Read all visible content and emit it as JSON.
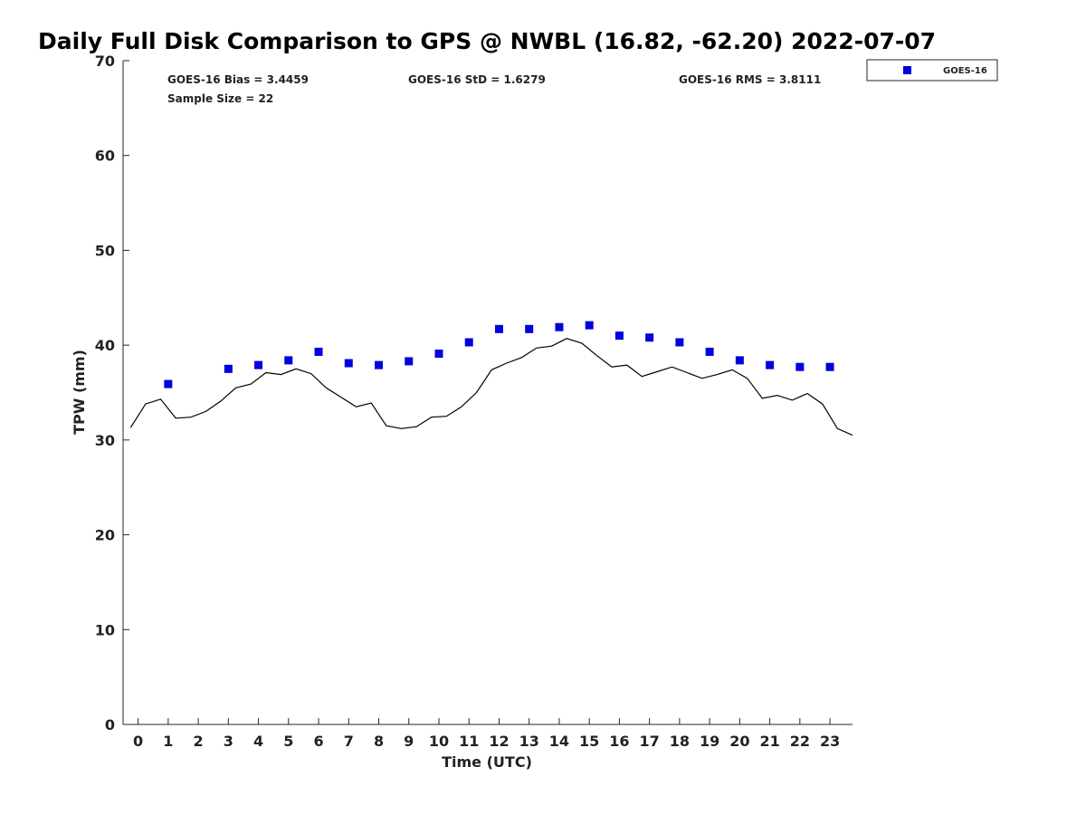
{
  "chart_data": {
    "type": "scatter",
    "title": "Daily Full Disk Comparison to GPS @ NWBL (16.82, -62.20) 2022-07-07",
    "xlabel": "Time (UTC)",
    "ylabel": "TPW (mm)",
    "xlim": [
      -0.5,
      23.75
    ],
    "ylim": [
      0,
      70
    ],
    "x_ticks": [
      "0",
      "1",
      "2",
      "3",
      "4",
      "5",
      "6",
      "7",
      "8",
      "9",
      "10",
      "11",
      "12",
      "13",
      "14",
      "15",
      "16",
      "17",
      "18",
      "19",
      "20",
      "21",
      "22",
      "23"
    ],
    "y_ticks": [
      "0",
      "10",
      "20",
      "30",
      "40",
      "50",
      "60",
      "70"
    ],
    "grid": false,
    "legend_position": "top-right",
    "stats": {
      "bias": "GOES-16 Bias = 3.4459",
      "std": "GOES-16 StD = 1.6279",
      "rms": "GOES-16 RMS = 3.8111",
      "sample": "Sample Size = 22"
    },
    "series": [
      {
        "name": "GOES-16",
        "kind": "scatter",
        "color": "#0000dd",
        "x": [
          1,
          3,
          4,
          5,
          6,
          7,
          8,
          9,
          10,
          11,
          12,
          13,
          14,
          15,
          16,
          17,
          18,
          19,
          20,
          21,
          22,
          23
        ],
        "y": [
          35.9,
          37.5,
          37.9,
          38.4,
          39.3,
          38.1,
          37.9,
          38.3,
          39.1,
          40.3,
          41.7,
          41.7,
          41.9,
          42.1,
          41.0,
          40.8,
          40.3,
          39.3,
          38.4,
          37.9,
          37.7,
          37.7
        ]
      },
      {
        "kind": "line",
        "color": "#000000",
        "x": [
          -0.25,
          0.25,
          0.75,
          1.25,
          1.75,
          2.25,
          2.75,
          3.25,
          3.75,
          4.25,
          4.75,
          5.25,
          5.75,
          6.25,
          6.75,
          7.25,
          7.75,
          8.25,
          8.75,
          9.25,
          9.75,
          10.25,
          10.75,
          11.25,
          11.75,
          12.25,
          12.75,
          13.25,
          13.75,
          14.25,
          14.75,
          15.25,
          15.75,
          16.25,
          16.75,
          17.25,
          17.75,
          18.25,
          18.75,
          19.25,
          19.75,
          20.25,
          20.75,
          21.25,
          21.75,
          22.25,
          22.75,
          23.25,
          23.75
        ],
        "y": [
          31.3,
          33.8,
          34.3,
          32.3,
          32.4,
          33.0,
          34.1,
          35.5,
          35.9,
          37.1,
          36.9,
          37.5,
          37.0,
          35.5,
          34.5,
          33.5,
          33.9,
          31.5,
          31.2,
          31.4,
          32.4,
          32.5,
          33.5,
          35.0,
          37.4,
          38.1,
          38.7,
          39.7,
          39.9,
          40.7,
          40.2,
          38.9,
          37.7,
          37.9,
          36.7,
          37.2,
          37.7,
          37.1,
          36.5,
          36.9,
          37.4,
          36.5,
          34.4,
          34.7,
          34.2,
          34.9,
          33.8,
          31.2,
          30.5
        ]
      }
    ]
  }
}
